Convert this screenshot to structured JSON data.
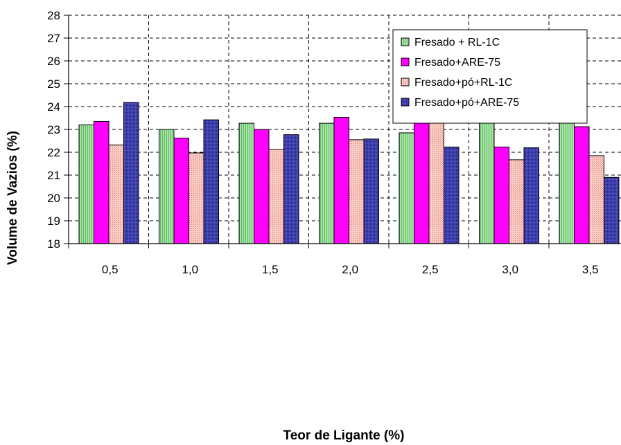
{
  "chart_data": {
    "type": "bar",
    "title": "",
    "xlabel": "Teor de Ligante (%)",
    "ylabel": "Volume de Vazios (%)",
    "ylim": [
      18,
      28
    ],
    "yticks": [
      "18",
      "19",
      "20",
      "21",
      "22",
      "23",
      "24",
      "25",
      "26",
      "27",
      "28"
    ],
    "categories": [
      "0,5",
      "1,0",
      "1,5",
      "2,0",
      "2,5",
      "3,0",
      "3,5"
    ],
    "grid": "dashed",
    "legend_position": "top-right",
    "series": [
      {
        "name": "Fresado + RL-1C",
        "color": "#8fd68f",
        "pattern": "vertical-stripes",
        "values": [
          23.2,
          23.0,
          23.27,
          23.27,
          22.85,
          24.42,
          24.83
        ]
      },
      {
        "name": "Fresado+ARE-75",
        "color": "#ff00ff",
        "pattern": "solid",
        "values": [
          23.35,
          22.62,
          23.0,
          23.53,
          23.58,
          22.23,
          23.12
        ]
      },
      {
        "name": "Fresado+pó+RL-1C",
        "color": "#f4a9a0",
        "pattern": "dotted",
        "values": [
          22.32,
          21.97,
          22.12,
          22.55,
          23.47,
          21.67,
          21.85
        ]
      },
      {
        "name": "Fresado+pó+ARE-75",
        "color": "#3a3aa8",
        "pattern": "dense-dots",
        "values": [
          24.18,
          23.42,
          22.77,
          22.58,
          22.23,
          22.2,
          20.9
        ]
      }
    ]
  }
}
